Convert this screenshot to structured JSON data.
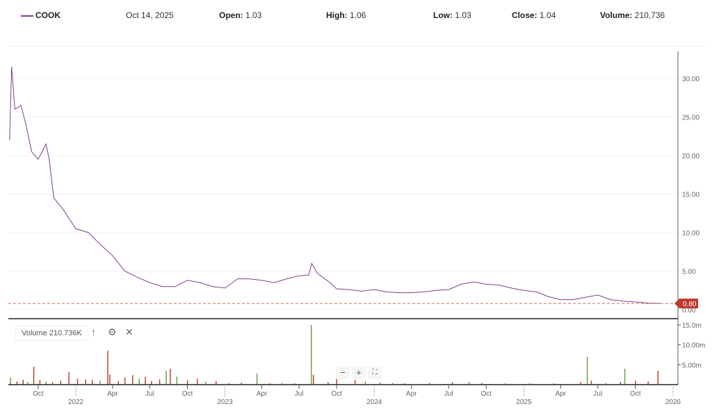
{
  "header": {
    "symbol": "COOK",
    "date": "Oct 14, 2025",
    "open_label": "Open:",
    "open": "1.03",
    "high_label": "High:",
    "high": "1.06",
    "low_label": "Low:",
    "low": "1.03",
    "close_label": "Close:",
    "close": "1.04",
    "volume_label": "Volume:",
    "volume": "210,736"
  },
  "volume_panel": {
    "label": "Volume 210.736K",
    "icons": [
      "arrow-up-icon",
      "gear-icon",
      "close-icon"
    ]
  },
  "zoom_controls": [
    "zoom-out",
    "zoom-in",
    "fullscreen"
  ],
  "chart_data": [
    {
      "type": "line",
      "series": [
        {
          "name": "COOK",
          "color": "#7b3f8c",
          "points": [
            [
              "2021-07-23",
              22
            ],
            [
              "2021-07-28",
              31.5
            ],
            [
              "2021-08-05",
              26
            ],
            [
              "2021-08-20",
              26.5
            ],
            [
              "2021-09-01",
              24
            ],
            [
              "2021-09-15",
              20.5
            ],
            [
              "2021-10-01",
              19.5
            ],
            [
              "2021-10-20",
              21.5
            ],
            [
              "2021-10-28",
              19.5
            ],
            [
              "2021-11-08",
              14.5
            ],
            [
              "2021-12-01",
              13
            ],
            [
              "2022-01-01",
              10.5
            ],
            [
              "2022-02-01",
              10
            ],
            [
              "2022-03-01",
              8.5
            ],
            [
              "2022-04-01",
              7
            ],
            [
              "2022-05-01",
              5
            ],
            [
              "2022-06-01",
              4.2
            ],
            [
              "2022-07-01",
              3.5
            ],
            [
              "2022-08-01",
              3
            ],
            [
              "2022-09-01",
              3
            ],
            [
              "2022-10-01",
              3.8
            ],
            [
              "2022-11-01",
              3.5
            ],
            [
              "2022-12-01",
              3
            ],
            [
              "2023-01-01",
              2.8
            ],
            [
              "2023-02-01",
              4
            ],
            [
              "2023-03-01",
              4
            ],
            [
              "2023-04-01",
              3.8
            ],
            [
              "2023-05-01",
              3.5
            ],
            [
              "2023-06-01",
              4
            ],
            [
              "2023-07-01",
              4.4
            ],
            [
              "2023-07-25",
              4.5
            ],
            [
              "2023-08-01",
              6
            ],
            [
              "2023-08-15",
              4.7
            ],
            [
              "2023-09-15",
              3.5
            ],
            [
              "2023-10-01",
              2.7
            ],
            [
              "2023-11-01",
              2.6
            ],
            [
              "2023-12-01",
              2.4
            ],
            [
              "2024-01-01",
              2.6
            ],
            [
              "2024-02-01",
              2.3
            ],
            [
              "2024-03-01",
              2.2
            ],
            [
              "2024-04-01",
              2.2
            ],
            [
              "2024-05-01",
              2.3
            ],
            [
              "2024-06-01",
              2.5
            ],
            [
              "2024-07-01",
              2.6
            ],
            [
              "2024-08-01",
              3.3
            ],
            [
              "2024-09-01",
              3.6
            ],
            [
              "2024-10-01",
              3.3
            ],
            [
              "2024-11-01",
              3.2
            ],
            [
              "2024-12-01",
              2.8
            ],
            [
              "2025-01-01",
              2.5
            ],
            [
              "2025-02-01",
              2.3
            ],
            [
              "2025-03-01",
              1.7
            ],
            [
              "2025-04-01",
              1.3
            ],
            [
              "2025-05-01",
              1.3
            ],
            [
              "2025-06-01",
              1.6
            ],
            [
              "2025-07-01",
              1.9
            ],
            [
              "2025-08-01",
              1.3
            ],
            [
              "2025-09-01",
              1.1
            ],
            [
              "2025-10-01",
              1.0
            ],
            [
              "2025-11-01",
              0.85
            ],
            [
              "2025-12-01",
              0.8
            ]
          ]
        }
      ],
      "last_price_label": "0.80",
      "y_ticks": [
        "0.00",
        "5.00",
        "10.00",
        "15.00",
        "20.00",
        "25.00",
        "30.00"
      ],
      "ylim": [
        0,
        33
      ],
      "xlim": [
        "2021-07-20",
        "2026-01-01"
      ],
      "grid": true
    },
    {
      "type": "bar",
      "series": [
        {
          "name": "Volume",
          "unit": "m",
          "points": [
            [
              "2021-07-25",
              1.8,
              "up"
            ],
            [
              "2021-08-10",
              0.8,
              "down"
            ],
            [
              "2021-08-25",
              1.2,
              "down"
            ],
            [
              "2021-09-05",
              0.7,
              "up"
            ],
            [
              "2021-09-20",
              4.5,
              "down"
            ],
            [
              "2021-10-05",
              1.2,
              "down"
            ],
            [
              "2021-10-20",
              0.8,
              "up"
            ],
            [
              "2021-11-05",
              0.6,
              "down"
            ],
            [
              "2021-11-25",
              1.0,
              "down"
            ],
            [
              "2021-12-15",
              3.2,
              "down"
            ],
            [
              "2022-01-05",
              1.5,
              "down"
            ],
            [
              "2022-01-25",
              1.3,
              "down"
            ],
            [
              "2022-02-10",
              1.2,
              "down"
            ],
            [
              "2022-03-01",
              1.0,
              "up"
            ],
            [
              "2022-03-20",
              8.5,
              "down"
            ],
            [
              "2022-03-25",
              2.5,
              "down"
            ],
            [
              "2022-04-15",
              0.9,
              "down"
            ],
            [
              "2022-05-01",
              1.8,
              "down"
            ],
            [
              "2022-05-20",
              2.4,
              "down"
            ],
            [
              "2022-06-05",
              1.5,
              "up"
            ],
            [
              "2022-06-20",
              2.0,
              "down"
            ],
            [
              "2022-07-05",
              0.9,
              "down"
            ],
            [
              "2022-07-25",
              1.3,
              "down"
            ],
            [
              "2022-08-10",
              3.5,
              "up"
            ],
            [
              "2022-08-20",
              4.0,
              "down"
            ],
            [
              "2022-09-05",
              2.0,
              "up"
            ],
            [
              "2022-10-01",
              1.1,
              "down"
            ],
            [
              "2022-10-25",
              1.5,
              "down"
            ],
            [
              "2022-11-15",
              0.8,
              "up"
            ],
            [
              "2022-12-10",
              0.9,
              "down"
            ],
            [
              "2023-01-10",
              0.4,
              "up"
            ],
            [
              "2023-02-10",
              0.5,
              "down"
            ],
            [
              "2023-03-20",
              2.8,
              "up"
            ],
            [
              "2023-04-20",
              0.3,
              "down"
            ],
            [
              "2023-05-20",
              0.4,
              "up"
            ],
            [
              "2023-06-20",
              0.3,
              "down"
            ],
            [
              "2023-07-31",
              15.0,
              "up"
            ],
            [
              "2023-08-05",
              2.5,
              "down"
            ],
            [
              "2023-09-10",
              0.6,
              "down"
            ],
            [
              "2023-10-01",
              1.8,
              "down"
            ],
            [
              "2023-11-15",
              1.2,
              "down"
            ],
            [
              "2023-12-10",
              0.8,
              "up"
            ],
            [
              "2024-01-15",
              0.5,
              "down"
            ],
            [
              "2024-02-15",
              0.4,
              "up"
            ],
            [
              "2024-03-15",
              0.3,
              "down"
            ],
            [
              "2024-05-15",
              0.5,
              "up"
            ],
            [
              "2024-07-10",
              0.6,
              "down"
            ],
            [
              "2024-08-20",
              0.7,
              "up"
            ],
            [
              "2024-09-20",
              0.4,
              "down"
            ],
            [
              "2024-11-15",
              0.3,
              "up"
            ],
            [
              "2025-01-15",
              0.3,
              "down"
            ],
            [
              "2025-03-15",
              0.3,
              "up"
            ],
            [
              "2025-05-20",
              0.6,
              "down"
            ],
            [
              "2025-06-05",
              7.0,
              "up"
            ],
            [
              "2025-06-15",
              1.0,
              "down"
            ],
            [
              "2025-07-20",
              0.4,
              "up"
            ],
            [
              "2025-08-25",
              0.7,
              "down"
            ],
            [
              "2025-09-05",
              4.0,
              "up"
            ],
            [
              "2025-10-01",
              1.0,
              "down"
            ],
            [
              "2025-11-01",
              0.8,
              "down"
            ],
            [
              "2025-11-25",
              3.5,
              "down"
            ]
          ]
        }
      ],
      "y_ticks": [
        "5.00m",
        "10.00m",
        "15.0m"
      ],
      "ylim": [
        0,
        15
      ],
      "colors": {
        "up": "#6b9a3a",
        "down": "#b33a1f"
      }
    }
  ],
  "x_axis": {
    "ticks": [
      [
        "2021-10-01",
        "Oct"
      ],
      [
        "2022-01-01",
        "2022"
      ],
      [
        "2022-04-01",
        "Apr"
      ],
      [
        "2022-07-01",
        "Jul"
      ],
      [
        "2022-10-01",
        "Oct"
      ],
      [
        "2023-01-01",
        "2023"
      ],
      [
        "2023-04-01",
        "Apr"
      ],
      [
        "2023-07-01",
        "Jul"
      ],
      [
        "2023-10-01",
        "Oct"
      ],
      [
        "2024-01-01",
        "2024"
      ],
      [
        "2024-04-01",
        "Apr"
      ],
      [
        "2024-07-01",
        "Jul"
      ],
      [
        "2024-10-01",
        "Oct"
      ],
      [
        "2025-01-01",
        "2025"
      ],
      [
        "2025-04-01",
        "Apr"
      ],
      [
        "2025-07-01",
        "Jul"
      ],
      [
        "2025-10-01",
        "Oct"
      ],
      [
        "2026-01-01",
        "2026"
      ]
    ]
  }
}
